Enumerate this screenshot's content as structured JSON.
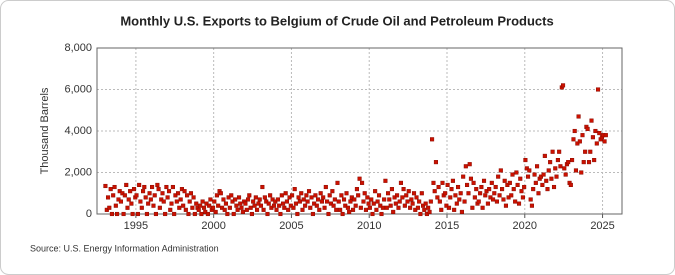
{
  "chart_data": {
    "type": "scatter",
    "title": "Monthly U.S. Exports to Belgium of Crude Oil and Petroleum Products",
    "y_label": "Thousand Barrels",
    "source": "Source: U.S. Energy Information Administration",
    "color": "#cc1100",
    "grid": true,
    "xlim": [
      1992.5,
      2026.25
    ],
    "xticks": [
      1995,
      2000,
      2005,
      2010,
      2015,
      2020,
      2025
    ],
    "ylim": [
      0,
      8000
    ],
    "yticks": [
      0,
      {
        "value": 2000,
        "label": "2,000"
      },
      {
        "value": 4000,
        "label": "4,000"
      },
      {
        "value": 6000,
        "label": "6,000"
      },
      {
        "value": 8000,
        "label": "8,000"
      }
    ],
    "x": [
      1993.04,
      1993.13,
      1993.21,
      1993.29,
      1993.38,
      1993.46,
      1993.54,
      1993.63,
      1993.71,
      1993.79,
      1993.88,
      1993.96,
      1994.04,
      1994.13,
      1994.21,
      1994.29,
      1994.38,
      1994.46,
      1994.54,
      1994.63,
      1994.71,
      1994.79,
      1994.88,
      1994.96,
      1995.04,
      1995.13,
      1995.21,
      1995.29,
      1995.38,
      1995.46,
      1995.54,
      1995.63,
      1995.71,
      1995.79,
      1995.88,
      1995.96,
      1996.04,
      1996.13,
      1996.21,
      1996.29,
      1996.38,
      1996.46,
      1996.54,
      1996.63,
      1996.71,
      1996.79,
      1996.88,
      1996.96,
      1997.04,
      1997.13,
      1997.21,
      1997.29,
      1997.38,
      1997.46,
      1997.54,
      1997.63,
      1997.71,
      1997.79,
      1997.88,
      1997.96,
      1998.04,
      1998.13,
      1998.21,
      1998.29,
      1998.38,
      1998.46,
      1998.54,
      1998.63,
      1998.71,
      1998.79,
      1998.88,
      1998.96,
      1999.04,
      1999.13,
      1999.21,
      1999.29,
      1999.38,
      1999.46,
      1999.54,
      1999.63,
      1999.71,
      1999.79,
      1999.88,
      1999.96,
      2000.04,
      2000.13,
      2000.21,
      2000.29,
      2000.38,
      2000.46,
      2000.54,
      2000.63,
      2000.71,
      2000.79,
      2000.88,
      2000.96,
      2001.04,
      2001.13,
      2001.21,
      2001.29,
      2001.38,
      2001.46,
      2001.54,
      2001.63,
      2001.71,
      2001.79,
      2001.88,
      2001.96,
      2002.04,
      2002.13,
      2002.21,
      2002.29,
      2002.38,
      2002.46,
      2002.54,
      2002.63,
      2002.71,
      2002.79,
      2002.88,
      2002.96,
      2003.04,
      2003.13,
      2003.21,
      2003.29,
      2003.38,
      2003.46,
      2003.54,
      2003.63,
      2003.71,
      2003.79,
      2003.88,
      2003.96,
      2004.04,
      2004.13,
      2004.21,
      2004.29,
      2004.38,
      2004.46,
      2004.54,
      2004.63,
      2004.71,
      2004.79,
      2004.88,
      2004.96,
      2005.04,
      2005.13,
      2005.21,
      2005.29,
      2005.38,
      2005.46,
      2005.54,
      2005.63,
      2005.71,
      2005.79,
      2005.88,
      2005.96,
      2006.04,
      2006.13,
      2006.21,
      2006.29,
      2006.38,
      2006.46,
      2006.54,
      2006.63,
      2006.71,
      2006.79,
      2006.88,
      2006.96,
      2007.04,
      2007.13,
      2007.21,
      2007.29,
      2007.38,
      2007.46,
      2007.54,
      2007.63,
      2007.71,
      2007.79,
      2007.88,
      2007.96,
      2008.04,
      2008.13,
      2008.21,
      2008.29,
      2008.38,
      2008.46,
      2008.54,
      2008.63,
      2008.71,
      2008.79,
      2008.88,
      2008.96,
      2009.04,
      2009.13,
      2009.21,
      2009.29,
      2009.38,
      2009.46,
      2009.54,
      2009.63,
      2009.71,
      2009.79,
      2009.88,
      2009.96,
      2010.04,
      2010.13,
      2010.21,
      2010.29,
      2010.38,
      2010.46,
      2010.54,
      2010.63,
      2010.71,
      2010.79,
      2010.88,
      2010.96,
      2011.04,
      2011.13,
      2011.21,
      2011.29,
      2011.38,
      2011.46,
      2011.54,
      2011.63,
      2011.71,
      2011.79,
      2011.88,
      2011.96,
      2012.04,
      2012.13,
      2012.21,
      2012.29,
      2012.38,
      2012.46,
      2012.54,
      2012.63,
      2012.71,
      2012.79,
      2012.88,
      2012.96,
      2013.04,
      2013.13,
      2013.21,
      2013.29,
      2013.38,
      2013.46,
      2013.54,
      2013.63,
      2013.71,
      2013.79,
      2013.88,
      2013.96,
      2014.04,
      2014.13,
      2014.21,
      2014.29,
      2014.38,
      2014.46,
      2014.54,
      2014.63,
      2014.71,
      2014.79,
      2014.88,
      2014.96,
      2015.04,
      2015.13,
      2015.21,
      2015.29,
      2015.38,
      2015.46,
      2015.54,
      2015.63,
      2015.71,
      2015.79,
      2015.88,
      2015.96,
      2016.04,
      2016.13,
      2016.21,
      2016.29,
      2016.38,
      2016.46,
      2016.54,
      2016.63,
      2016.71,
      2016.79,
      2016.88,
      2016.96,
      2017.04,
      2017.13,
      2017.21,
      2017.29,
      2017.38,
      2017.46,
      2017.54,
      2017.63,
      2017.71,
      2017.79,
      2017.88,
      2017.96,
      2018.04,
      2018.13,
      2018.21,
      2018.29,
      2018.38,
      2018.46,
      2018.54,
      2018.63,
      2018.71,
      2018.79,
      2018.88,
      2018.96,
      2019.04,
      2019.13,
      2019.21,
      2019.29,
      2019.38,
      2019.46,
      2019.54,
      2019.63,
      2019.71,
      2019.79,
      2019.88,
      2019.96,
      2020.04,
      2020.13,
      2020.21,
      2020.29,
      2020.38,
      2020.46,
      2020.54,
      2020.63,
      2020.71,
      2020.79,
      2020.88,
      2020.96,
      2021.04,
      2021.13,
      2021.21,
      2021.29,
      2021.38,
      2021.46,
      2021.54,
      2021.63,
      2021.71,
      2021.79,
      2021.88,
      2021.96,
      2022.04,
      2022.13,
      2022.21,
      2022.29,
      2022.38,
      2022.46,
      2022.54,
      2022.63,
      2022.71,
      2022.79,
      2022.88,
      2022.96,
      2023.04,
      2023.13,
      2023.21,
      2023.29,
      2023.38,
      2023.46,
      2023.54,
      2023.63,
      2023.71,
      2023.79,
      2023.88,
      2023.96,
      2024.04,
      2024.13,
      2024.21,
      2024.29,
      2024.38,
      2024.46,
      2024.54,
      2024.63,
      2024.71,
      2024.79,
      2024.88,
      2024.96,
      2025.04,
      2025.13,
      2025.21
    ],
    "values": [
      1350,
      200,
      800,
      300,
      1200,
      0,
      900,
      1300,
      400,
      0,
      700,
      1100,
      600,
      1000,
      0,
      900,
      1400,
      300,
      700,
      1100,
      500,
      0,
      1200,
      800,
      900,
      0,
      1400,
      600,
      300,
      1100,
      1300,
      800,
      0,
      500,
      1000,
      700,
      1300,
      400,
      900,
      0,
      1400,
      1200,
      300,
      700,
      1000,
      600,
      0,
      1300,
      800,
      1100,
      200,
      500,
      1300,
      0,
      900,
      600,
      1000,
      300,
      700,
      1200,
      400,
      1100,
      200,
      900,
      0,
      600,
      1000,
      300,
      800,
      0,
      500,
      300,
      200,
      400,
      0,
      600,
      300,
      100,
      500,
      0,
      400,
      700,
      200,
      300,
      600,
      100,
      900,
      400,
      1100,
      1000,
      300,
      700,
      200,
      500,
      0,
      800,
      300,
      900,
      600,
      0,
      700,
      400,
      200,
      800,
      500,
      300,
      100,
      600,
      500,
      200,
      700,
      900,
      300,
      0,
      600,
      400,
      800,
      200,
      500,
      700,
      400,
      1300,
      200,
      800,
      600,
      0,
      500,
      900,
      300,
      700,
      400,
      600,
      200,
      700,
      400,
      0,
      900,
      500,
      300,
      1000,
      600,
      200,
      800,
      400,
      900,
      300,
      1200,
      500,
      0,
      800,
      600,
      1000,
      200,
      700,
      400,
      900,
      600,
      1100,
      300,
      800,
      0,
      500,
      900,
      400,
      700,
      200,
      1000,
      600,
      800,
      300,
      1300,
      600,
      0,
      900,
      500,
      1100,
      400,
      700,
      200,
      1500,
      600,
      200,
      900,
      0,
      700,
      400,
      1000,
      300,
      100,
      600,
      800,
      200,
      700,
      400,
      1200,
      900,
      1700,
      300,
      1500,
      600,
      1000,
      200,
      800,
      500,
      300,
      700,
      0,
      500,
      1100,
      200,
      600,
      900,
      400,
      0,
      300,
      700,
      1600,
      300,
      1000,
      700,
      400,
      1200,
      100,
      800,
      500,
      900,
      300,
      600,
      1500,
      800,
      1200,
      400,
      900,
      600,
      1100,
      300,
      700,
      500,
      1000,
      200,
      800,
      300,
      600,
      0,
      1000,
      400,
      200,
      500,
      0,
      300,
      100,
      600,
      3600,
      1500,
      1100,
      2500,
      800,
      1300,
      600,
      200,
      1500,
      900,
      1000,
      400,
      1400,
      300,
      800,
      1200,
      1600,
      200,
      900,
      500,
      1300,
      700,
      1000,
      100,
      1800,
      600,
      2300,
      1400,
      1000,
      2400,
      1700,
      300,
      1500,
      800,
      1200,
      500,
      600,
      1000,
      1300,
      300,
      1600,
      900,
      1100,
      500,
      1200,
      800,
      1500,
      700,
      1000,
      1300,
      600,
      1800,
      900,
      2100,
      1200,
      700,
      1600,
      400,
      1400,
      800,
      1500,
      900,
      1900,
      1200,
      600,
      2000,
      1400,
      500,
      1700,
      1100,
      800,
      1300,
      2600,
      2200,
      1800,
      2100,
      700,
      400,
      1200,
      1900,
      1500,
      2300,
      1000,
      1700,
      1800,
      1400,
      1900,
      2800,
      1600,
      1200,
      2100,
      2500,
      1700,
      3000,
      1300,
      2200,
      1800,
      2600,
      3000,
      2300,
      6100,
      6200,
      2200,
      1900,
      2400,
      2500,
      1500,
      1400,
      2600,
      3600,
      4000,
      2100,
      3400,
      4700,
      3500,
      2000,
      3800,
      2500,
      3000,
      4200,
      4100,
      2500,
      3000,
      4500,
      3700,
      2600,
      4000,
      3400,
      6000,
      3900,
      3600,
      3700,
      3800,
      3500,
      3800
    ]
  }
}
